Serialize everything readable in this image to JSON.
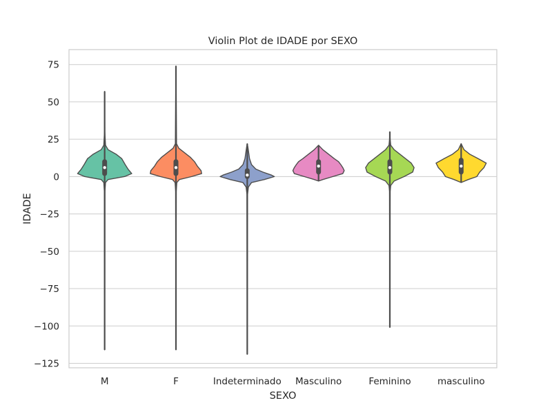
{
  "chart_data": {
    "type": "violin",
    "title": "Violin Plot de IDADE por SEXO",
    "xlabel": "SEXO",
    "ylabel": "IDADE",
    "ylim": [
      -128,
      85
    ],
    "yticks": [
      75,
      50,
      25,
      0,
      -25,
      -50,
      -75,
      -100,
      -125
    ],
    "ytick_labels": [
      "75",
      "50",
      "25",
      "0",
      "−25",
      "−50",
      "−75",
      "−100",
      "−125"
    ],
    "grid": true,
    "categories": [
      "M",
      "F",
      "Indeterminado",
      "Masculino",
      "Feminino",
      "masculino"
    ],
    "colors": [
      "#66c2a5",
      "#fc8d62",
      "#8da0cb",
      "#e78ac3",
      "#a6d854",
      "#ffd92f"
    ],
    "violins": [
      {
        "min": -116,
        "max": 57,
        "q1": 2,
        "median": 6,
        "q3": 10,
        "profile": [
          [
            -116,
            0
          ],
          [
            -10,
            0.01
          ],
          [
            -4,
            0.03
          ],
          [
            -2,
            0.12
          ],
          [
            0,
            0.7
          ],
          [
            2,
            0.95
          ],
          [
            5,
            0.82
          ],
          [
            8,
            0.72
          ],
          [
            12,
            0.6
          ],
          [
            15,
            0.4
          ],
          [
            18,
            0.12
          ],
          [
            21,
            0.03
          ],
          [
            30,
            0.005
          ],
          [
            57,
            0
          ]
        ]
      },
      {
        "min": -116,
        "max": 74,
        "q1": 2,
        "median": 6,
        "q3": 10,
        "profile": [
          [
            -116,
            0
          ],
          [
            -10,
            0.01
          ],
          [
            -4,
            0.03
          ],
          [
            -2,
            0.12
          ],
          [
            0,
            0.55
          ],
          [
            2,
            0.9
          ],
          [
            4,
            0.88
          ],
          [
            7,
            0.75
          ],
          [
            10,
            0.65
          ],
          [
            13,
            0.5
          ],
          [
            16,
            0.3
          ],
          [
            19,
            0.1
          ],
          [
            22,
            0.02
          ],
          [
            74,
            0
          ]
        ]
      },
      {
        "min": -119,
        "max": 22,
        "q1": 0,
        "median": 1,
        "q3": 4,
        "profile": [
          [
            -119,
            0
          ],
          [
            -12,
            0.01
          ],
          [
            -7,
            0.04
          ],
          [
            -4,
            0.15
          ],
          [
            -2,
            0.6
          ],
          [
            0,
            0.95
          ],
          [
            1,
            0.85
          ],
          [
            3,
            0.55
          ],
          [
            5,
            0.3
          ],
          [
            8,
            0.15
          ],
          [
            12,
            0.08
          ],
          [
            16,
            0.05
          ],
          [
            20,
            0.02
          ],
          [
            22,
            0
          ]
        ]
      },
      {
        "min": -3,
        "max": 21,
        "q1": 3,
        "median": 7,
        "q3": 10,
        "profile": [
          [
            -3,
            0
          ],
          [
            -2,
            0.15
          ],
          [
            0,
            0.5
          ],
          [
            2,
            0.85
          ],
          [
            4,
            0.9
          ],
          [
            6,
            0.85
          ],
          [
            8,
            0.78
          ],
          [
            10,
            0.7
          ],
          [
            12,
            0.55
          ],
          [
            15,
            0.35
          ],
          [
            18,
            0.15
          ],
          [
            21,
            0
          ]
        ]
      },
      {
        "min": -101,
        "max": 30,
        "q1": 3,
        "median": 6,
        "q3": 10,
        "profile": [
          [
            -101,
            0
          ],
          [
            -10,
            0.01
          ],
          [
            -6,
            0.03
          ],
          [
            -3,
            0.15
          ],
          [
            0,
            0.5
          ],
          [
            3,
            0.8
          ],
          [
            6,
            0.85
          ],
          [
            9,
            0.75
          ],
          [
            12,
            0.55
          ],
          [
            15,
            0.35
          ],
          [
            18,
            0.15
          ],
          [
            21,
            0.03
          ],
          [
            25,
            0.01
          ],
          [
            30,
            0
          ]
        ]
      },
      {
        "min": -4,
        "max": 22,
        "q1": 3,
        "median": 7,
        "q3": 11,
        "profile": [
          [
            -4,
            0
          ],
          [
            -2,
            0.25
          ],
          [
            0,
            0.55
          ],
          [
            3,
            0.65
          ],
          [
            6,
            0.8
          ],
          [
            9,
            0.88
          ],
          [
            12,
            0.6
          ],
          [
            15,
            0.3
          ],
          [
            18,
            0.1
          ],
          [
            22,
            0
          ]
        ]
      }
    ]
  }
}
